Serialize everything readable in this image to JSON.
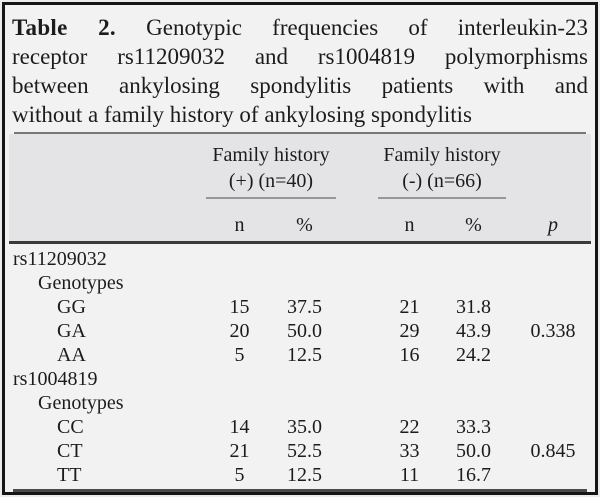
{
  "title": {
    "label": "Table 2.",
    "line1_rest": "Genotypic frequencies of interleukin-23",
    "line2": "receptor rs11209032 and rs1004819 polymorphisms",
    "line3": "between ankylosing spondylitis patients with and",
    "line4": "without a family history of ankylosing spondylitis"
  },
  "table": {
    "group1": {
      "line1": "Family history",
      "line2": "(+) (n=40)"
    },
    "group2": {
      "line1": "Family history",
      "line2": "(-) (n=66)"
    },
    "subheaders": {
      "n1": "n",
      "pct1": "%",
      "n2": "n",
      "pct2": "%",
      "p": "p"
    },
    "sections": [
      {
        "name": "rs11209032",
        "subtitle": "Genotypes",
        "rows": [
          {
            "genotype": "GG",
            "n1": "15",
            "pct1": "37.5",
            "n2": "21",
            "pct2": "31.8"
          },
          {
            "genotype": "GA",
            "n1": "20",
            "pct1": "50.0",
            "n2": "29",
            "pct2": "43.9",
            "p": "0.338"
          },
          {
            "genotype": "AA",
            "n1": "5",
            "pct1": "12.5",
            "n2": "16",
            "pct2": "24.2"
          }
        ]
      },
      {
        "name": "rs1004819",
        "subtitle": "Genotypes",
        "rows": [
          {
            "genotype": "CC",
            "n1": "14",
            "pct1": "35.0",
            "n2": "22",
            "pct2": "33.3"
          },
          {
            "genotype": "CT",
            "n1": "21",
            "pct1": "52.5",
            "n2": "33",
            "pct2": "50.0",
            "p": "0.845"
          },
          {
            "genotype": "TT",
            "n1": "5",
            "pct1": "12.5",
            "n2": "11",
            "pct2": "16.7"
          }
        ]
      }
    ]
  },
  "colors": {
    "page_bg": "#f2f2f2",
    "header_band_bg": "#e4e4e7",
    "frame": "#161616",
    "text": "#1c1c1c",
    "thin_rule": "#777777",
    "group_underline": "#979797",
    "thick_rule": "#3a3a3a"
  }
}
